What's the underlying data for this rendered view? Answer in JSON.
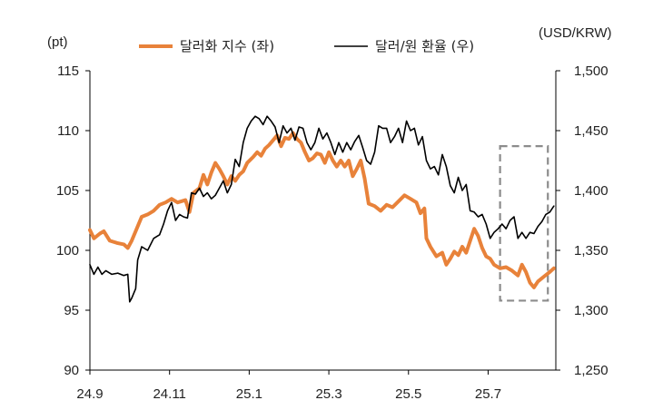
{
  "chart_data": {
    "type": "line",
    "left_unit": "(pt)",
    "right_unit": "(USD/KRW)",
    "x_ticks": [
      "24.9",
      "24.11",
      "25.1",
      "25.3",
      "25.5",
      "25.7"
    ],
    "y_left_ticks": [
      "90",
      "95",
      "100",
      "105",
      "110",
      "115"
    ],
    "y_right_ticks": [
      "1,250",
      "1,300",
      "1,350",
      "1,400",
      "1,450",
      "1,500"
    ],
    "y_left_range": [
      90,
      115
    ],
    "y_right_range": [
      1250,
      1500
    ],
    "highlight_box": {
      "x_range": [
        10.3,
        11.5
      ],
      "y_range": [
        95.8,
        108.7
      ]
    },
    "series": [
      {
        "name": "달러화 지수 (좌)",
        "axis": "left",
        "color": "#E8823A",
        "values": [
          [
            0.0,
            101.7
          ],
          [
            0.1,
            101.0
          ],
          [
            0.25,
            101.4
          ],
          [
            0.35,
            101.6
          ],
          [
            0.5,
            100.8
          ],
          [
            0.7,
            100.6
          ],
          [
            0.85,
            100.5
          ],
          [
            0.95,
            100.2
          ],
          [
            1.05,
            100.8
          ],
          [
            1.15,
            101.6
          ],
          [
            1.3,
            102.8
          ],
          [
            1.45,
            103.0
          ],
          [
            1.6,
            103.3
          ],
          [
            1.75,
            103.8
          ],
          [
            1.9,
            104.0
          ],
          [
            2.05,
            104.3
          ],
          [
            2.2,
            104.0
          ],
          [
            2.4,
            104.2
          ],
          [
            2.5,
            103.2
          ],
          [
            2.6,
            104.8
          ],
          [
            2.75,
            105.2
          ],
          [
            2.85,
            106.3
          ],
          [
            2.95,
            105.5
          ],
          [
            3.05,
            106.5
          ],
          [
            3.15,
            107.3
          ],
          [
            3.25,
            106.8
          ],
          [
            3.35,
            106.2
          ],
          [
            3.45,
            105.5
          ],
          [
            3.55,
            106.2
          ],
          [
            3.65,
            105.8
          ],
          [
            3.75,
            106.3
          ],
          [
            3.85,
            106.6
          ],
          [
            3.95,
            107.3
          ],
          [
            4.1,
            107.8
          ],
          [
            4.2,
            108.2
          ],
          [
            4.3,
            107.9
          ],
          [
            4.4,
            108.5
          ],
          [
            4.5,
            108.8
          ],
          [
            4.6,
            109.2
          ],
          [
            4.7,
            109.6
          ],
          [
            4.8,
            108.7
          ],
          [
            4.9,
            109.4
          ],
          [
            5.0,
            109.3
          ],
          [
            5.1,
            109.8
          ],
          [
            5.2,
            109.3
          ],
          [
            5.3,
            109.0
          ],
          [
            5.4,
            108.2
          ],
          [
            5.5,
            107.5
          ],
          [
            5.6,
            107.7
          ],
          [
            5.7,
            108.1
          ],
          [
            5.8,
            108.0
          ],
          [
            5.9,
            107.3
          ],
          [
            6.0,
            108.2
          ],
          [
            6.1,
            107.5
          ],
          [
            6.2,
            107.0
          ],
          [
            6.3,
            107.5
          ],
          [
            6.4,
            107.0
          ],
          [
            6.5,
            107.5
          ],
          [
            6.6,
            106.2
          ],
          [
            6.7,
            106.8
          ],
          [
            6.8,
            107.5
          ],
          [
            6.9,
            106.0
          ],
          [
            7.0,
            103.9
          ],
          [
            7.15,
            103.7
          ],
          [
            7.3,
            103.3
          ],
          [
            7.45,
            103.8
          ],
          [
            7.6,
            103.6
          ],
          [
            7.75,
            104.1
          ],
          [
            7.9,
            104.6
          ],
          [
            8.05,
            104.3
          ],
          [
            8.2,
            104.0
          ],
          [
            8.3,
            103.1
          ],
          [
            8.4,
            103.5
          ],
          [
            8.45,
            101.0
          ],
          [
            8.55,
            100.3
          ],
          [
            8.7,
            99.5
          ],
          [
            8.85,
            99.8
          ],
          [
            8.95,
            98.8
          ],
          [
            9.05,
            99.3
          ],
          [
            9.15,
            99.9
          ],
          [
            9.25,
            99.6
          ],
          [
            9.35,
            100.3
          ],
          [
            9.45,
            99.8
          ],
          [
            9.55,
            100.8
          ],
          [
            9.65,
            101.8
          ],
          [
            9.75,
            101.2
          ],
          [
            9.85,
            100.2
          ],
          [
            9.95,
            99.5
          ],
          [
            10.05,
            99.3
          ],
          [
            10.15,
            98.8
          ],
          [
            10.3,
            98.5
          ],
          [
            10.45,
            98.6
          ],
          [
            10.6,
            98.3
          ],
          [
            10.75,
            97.9
          ],
          [
            10.85,
            98.8
          ],
          [
            10.95,
            98.2
          ],
          [
            11.05,
            97.3
          ],
          [
            11.15,
            96.9
          ],
          [
            11.25,
            97.4
          ],
          [
            11.4,
            97.8
          ],
          [
            11.55,
            98.2
          ],
          [
            11.65,
            98.5
          ]
        ]
      },
      {
        "name": "달러/원 환율 (우)",
        "axis": "right",
        "color": "#000000",
        "values": [
          [
            0.0,
            1338
          ],
          [
            0.1,
            1330
          ],
          [
            0.2,
            1336
          ],
          [
            0.3,
            1330
          ],
          [
            0.4,
            1333
          ],
          [
            0.55,
            1330
          ],
          [
            0.7,
            1331
          ],
          [
            0.85,
            1329
          ],
          [
            0.95,
            1330
          ],
          [
            1.0,
            1307
          ],
          [
            1.05,
            1310
          ],
          [
            1.15,
            1318
          ],
          [
            1.2,
            1342
          ],
          [
            1.3,
            1353
          ],
          [
            1.45,
            1350
          ],
          [
            1.6,
            1360
          ],
          [
            1.75,
            1363
          ],
          [
            1.85,
            1372
          ],
          [
            1.95,
            1383
          ],
          [
            2.05,
            1390
          ],
          [
            2.15,
            1375
          ],
          [
            2.25,
            1380
          ],
          [
            2.35,
            1378
          ],
          [
            2.45,
            1377
          ],
          [
            2.55,
            1398
          ],
          [
            2.65,
            1397
          ],
          [
            2.75,
            1402
          ],
          [
            2.85,
            1395
          ],
          [
            2.95,
            1398
          ],
          [
            3.05,
            1393
          ],
          [
            3.15,
            1396
          ],
          [
            3.25,
            1402
          ],
          [
            3.35,
            1408
          ],
          [
            3.45,
            1398
          ],
          [
            3.55,
            1405
          ],
          [
            3.65,
            1426
          ],
          [
            3.75,
            1420
          ],
          [
            3.85,
            1440
          ],
          [
            3.95,
            1452
          ],
          [
            4.05,
            1458
          ],
          [
            4.15,
            1462
          ],
          [
            4.25,
            1460
          ],
          [
            4.35,
            1455
          ],
          [
            4.45,
            1462
          ],
          [
            4.55,
            1458
          ],
          [
            4.65,
            1453
          ],
          [
            4.75,
            1440
          ],
          [
            4.85,
            1454
          ],
          [
            4.95,
            1448
          ],
          [
            5.05,
            1452
          ],
          [
            5.15,
            1442
          ],
          [
            5.25,
            1453
          ],
          [
            5.35,
            1452
          ],
          [
            5.45,
            1440
          ],
          [
            5.55,
            1434
          ],
          [
            5.65,
            1440
          ],
          [
            5.75,
            1452
          ],
          [
            5.85,
            1443
          ],
          [
            5.95,
            1448
          ],
          [
            6.05,
            1440
          ],
          [
            6.15,
            1430
          ],
          [
            6.25,
            1440
          ],
          [
            6.35,
            1432
          ],
          [
            6.45,
            1440
          ],
          [
            6.55,
            1434
          ],
          [
            6.65,
            1441
          ],
          [
            6.75,
            1446
          ],
          [
            6.85,
            1436
          ],
          [
            6.95,
            1425
          ],
          [
            7.05,
            1422
          ],
          [
            7.15,
            1432
          ],
          [
            7.25,
            1454
          ],
          [
            7.35,
            1452
          ],
          [
            7.45,
            1452
          ],
          [
            7.55,
            1440
          ],
          [
            7.65,
            1445
          ],
          [
            7.75,
            1452
          ],
          [
            7.85,
            1440
          ],
          [
            7.95,
            1458
          ],
          [
            8.05,
            1450
          ],
          [
            8.15,
            1452
          ],
          [
            8.25,
            1438
          ],
          [
            8.35,
            1445
          ],
          [
            8.45,
            1425
          ],
          [
            8.55,
            1418
          ],
          [
            8.65,
            1420
          ],
          [
            8.75,
            1413
          ],
          [
            8.85,
            1430
          ],
          [
            8.95,
            1420
          ],
          [
            9.05,
            1404
          ],
          [
            9.15,
            1398
          ],
          [
            9.25,
            1411
          ],
          [
            9.35,
            1400
          ],
          [
            9.45,
            1405
          ],
          [
            9.55,
            1383
          ],
          [
            9.65,
            1382
          ],
          [
            9.75,
            1378
          ],
          [
            9.85,
            1380
          ],
          [
            9.95,
            1372
          ],
          [
            10.05,
            1360
          ],
          [
            10.15,
            1365
          ],
          [
            10.25,
            1368
          ],
          [
            10.35,
            1372
          ],
          [
            10.45,
            1368
          ],
          [
            10.55,
            1375
          ],
          [
            10.65,
            1378
          ],
          [
            10.75,
            1360
          ],
          [
            10.85,
            1365
          ],
          [
            10.95,
            1360
          ],
          [
            11.05,
            1365
          ],
          [
            11.15,
            1364
          ],
          [
            11.25,
            1370
          ],
          [
            11.35,
            1374
          ],
          [
            11.45,
            1380
          ],
          [
            11.55,
            1382
          ],
          [
            11.65,
            1387
          ]
        ]
      }
    ]
  }
}
